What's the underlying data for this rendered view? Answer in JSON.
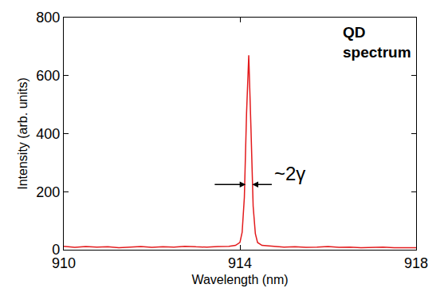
{
  "chart_data": {
    "type": "line",
    "x": [
      910,
      910.25,
      910.5,
      910.75,
      911,
      911.25,
      911.5,
      911.75,
      912,
      912.25,
      912.5,
      912.75,
      913,
      913.25,
      913.5,
      913.75,
      913.9,
      914.0,
      914.05,
      914.1,
      914.15,
      914.2,
      914.25,
      914.3,
      914.35,
      914.4,
      914.5,
      914.75,
      915,
      915.25,
      915.5,
      915.75,
      916,
      916.25,
      916.5,
      916.75,
      917,
      917.25,
      917.5,
      917.75,
      918
    ],
    "values": [
      12,
      8,
      11,
      9,
      10,
      7,
      9,
      11,
      8,
      10,
      9,
      12,
      10,
      9,
      11,
      12,
      15,
      25,
      60,
      180,
      470,
      670,
      420,
      150,
      55,
      25,
      15,
      11,
      9,
      10,
      8,
      9,
      11,
      8,
      9,
      7,
      8,
      9,
      7,
      8,
      7
    ],
    "color": "#e31a1c",
    "xlabel": "Wavelength (nm)",
    "ylabel": "Intensity (arb. units)",
    "xlim": [
      910,
      918
    ],
    "xticks": [
      910,
      914,
      918
    ],
    "ylim": [
      0,
      800
    ],
    "yticks": [
      0,
      200,
      400,
      600,
      800
    ],
    "grid": false,
    "annotations": [
      "QD spectrum",
      "~2γ"
    ]
  }
}
